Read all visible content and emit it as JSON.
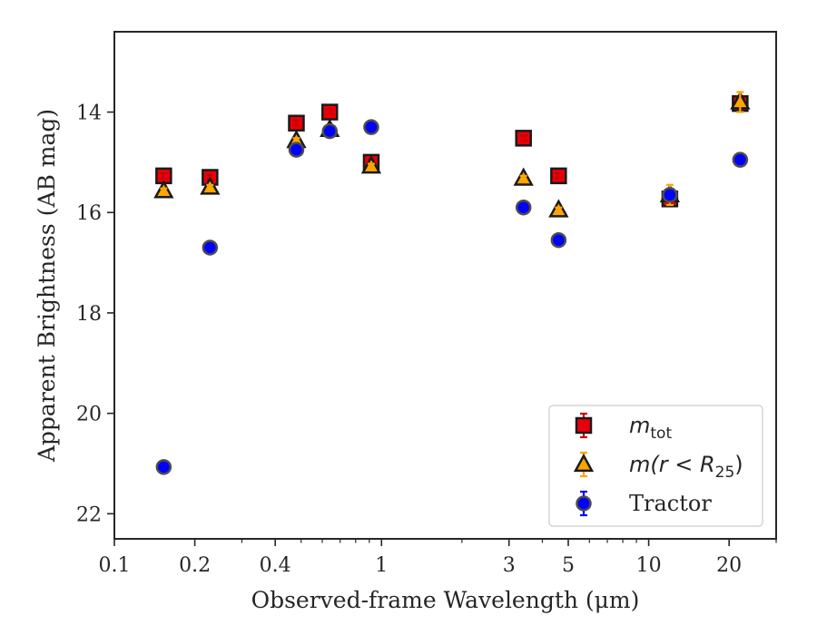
{
  "chart_data": {
    "type": "scatter",
    "xlabel": "Observed-frame Wavelength (μm)",
    "ylabel": "Apparent Brightness (AB mag)",
    "xscale": "log",
    "xlim": [
      0.1,
      30
    ],
    "ylim": [
      22.5,
      12.4
    ],
    "y_inverted": true,
    "grid": false,
    "legend_position": "lower-right",
    "x_ticks": [
      {
        "value": 0.1,
        "label": "0.1"
      },
      {
        "value": 0.2,
        "label": "0.2"
      },
      {
        "value": 0.4,
        "label": "0.4"
      },
      {
        "value": 1,
        "label": "1"
      },
      {
        "value": 3,
        "label": "3"
      },
      {
        "value": 5,
        "label": "5"
      },
      {
        "value": 10,
        "label": "10"
      },
      {
        "value": 20,
        "label": "20"
      }
    ],
    "y_ticks": [
      {
        "value": 14,
        "label": "14"
      },
      {
        "value": 16,
        "label": "16"
      },
      {
        "value": 18,
        "label": "18"
      },
      {
        "value": 20,
        "label": "20"
      },
      {
        "value": 22,
        "label": "22"
      }
    ],
    "series": [
      {
        "name": "m_tot",
        "marker": "square",
        "color": "#e8000b",
        "error_color": "#cc0000",
        "x": [
          0.153,
          0.228,
          0.48,
          0.64,
          0.915,
          3.4,
          4.6,
          12.0,
          22.0
        ],
        "y": [
          15.27,
          15.3,
          14.22,
          14.0,
          15.0,
          14.52,
          15.27,
          15.73,
          13.83
        ],
        "yerr": [
          0.05,
          0.05,
          0.05,
          0.05,
          0.05,
          0.05,
          0.05,
          0.08,
          0.08
        ]
      },
      {
        "name": "m(r < R_25)",
        "marker": "triangle",
        "color": "#ffa500",
        "error_color": "#ffa500",
        "x": [
          0.153,
          0.228,
          0.48,
          0.64,
          0.915,
          3.4,
          4.6,
          12.0,
          22.0
        ],
        "y": [
          15.57,
          15.5,
          14.57,
          14.35,
          15.08,
          15.32,
          15.95,
          15.65,
          13.8
        ],
        "yerr": [
          0.05,
          0.05,
          0.05,
          0.05,
          0.05,
          0.05,
          0.05,
          0.2,
          0.2
        ]
      },
      {
        "name": "Tractor",
        "marker": "circle",
        "color": "#0000ff",
        "error_color": "#0000ff",
        "x": [
          0.153,
          0.228,
          0.48,
          0.64,
          0.915,
          3.4,
          4.6,
          12.0,
          22.0
        ],
        "y": [
          21.07,
          16.7,
          14.75,
          14.38,
          14.3,
          15.9,
          16.55,
          15.65,
          14.95
        ],
        "yerr": [
          0.05,
          0.05,
          0.05,
          0.05,
          0.05,
          0.05,
          0.05,
          0.08,
          0.05
        ]
      }
    ],
    "legend": [
      {
        "series": 0,
        "base": "m",
        "sub": "tot",
        "plain": ""
      },
      {
        "series": 1,
        "base": "m(r < R",
        "sub": "25",
        "tail": ")",
        "plain": ""
      },
      {
        "series": 2,
        "base": "",
        "sub": "",
        "plain": "Tractor"
      }
    ]
  }
}
